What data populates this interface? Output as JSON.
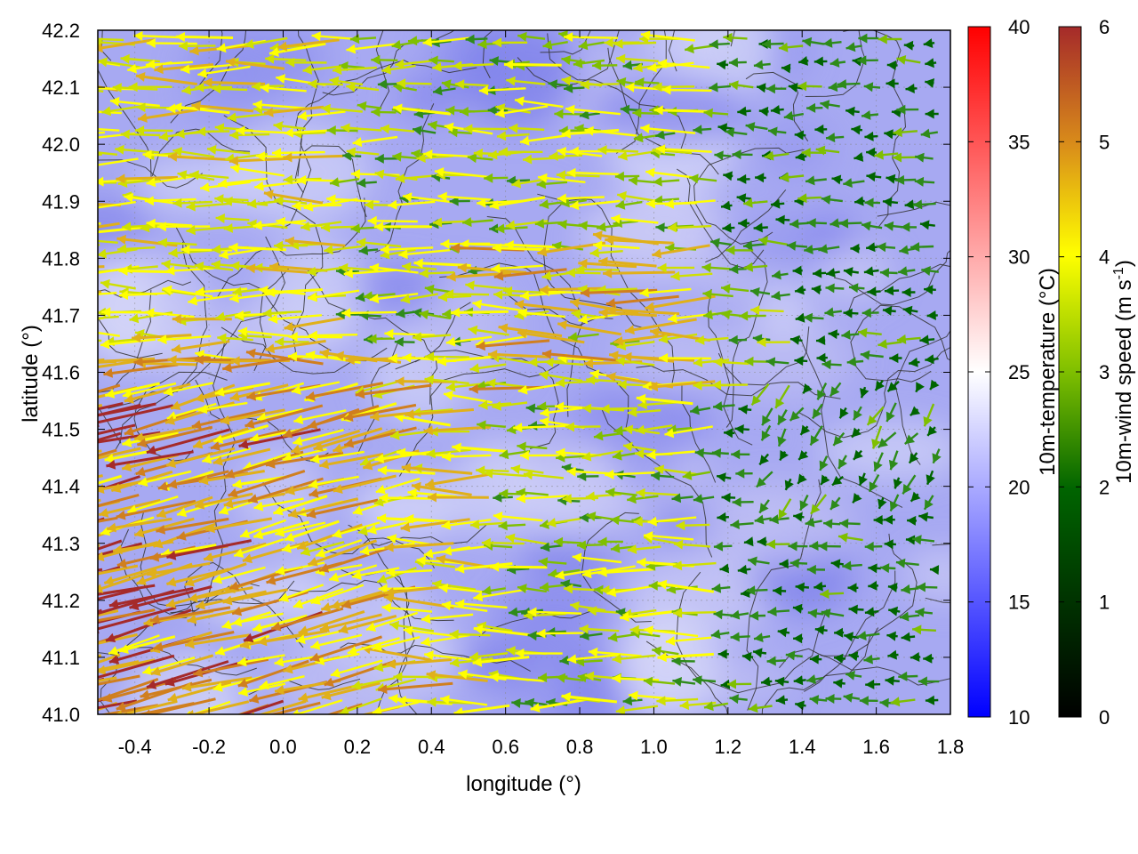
{
  "chart_data": {
    "type": "heatmap",
    "xlabel": "longitude (°)",
    "ylabel": "latitude (°)",
    "xlim": [
      -0.5,
      1.8
    ],
    "ylim": [
      41.0,
      42.2
    ],
    "x_ticks": [
      "-0.4",
      "-0.2",
      "0.0",
      "0.2",
      "0.4",
      "0.6",
      "0.8",
      "1.0",
      "1.2",
      "1.4",
      "1.6",
      "1.8"
    ],
    "y_ticks": [
      "41.0",
      "41.1",
      "41.2",
      "41.3",
      "41.4",
      "41.5",
      "41.6",
      "41.7",
      "41.8",
      "41.9",
      "42.0",
      "42.1",
      "42.2"
    ],
    "grid": true,
    "temperature_colorbar": {
      "label": "10m-temperature (°C)",
      "range": [
        10,
        40
      ],
      "ticks": [
        "10",
        "15",
        "20",
        "25",
        "30",
        "35",
        "40"
      ],
      "colors": [
        "#0000ff",
        "#ffffff",
        "#ff0000"
      ]
    },
    "wind_colorbar": {
      "label_main": "10m-wind speed (m s",
      "label_sup": "-1",
      "label_end": ")",
      "range": [
        0,
        6
      ],
      "ticks": [
        "0",
        "1",
        "2",
        "3",
        "4",
        "5",
        "6"
      ],
      "colors": [
        "#000000",
        "#006400",
        "#7fbf00",
        "#ffff00",
        "#d98c1a",
        "#a52a2a"
      ]
    },
    "field_summary": {
      "temperature_background_C": [
        16,
        23
      ],
      "wind_direction": "mostly westward",
      "strongest_winds_region": "south-west (lon -0.5 to 0.6, lat 41.0 to 41.6)",
      "weakest_winds_region": "east (lon 1.2 to 1.8)"
    }
  }
}
